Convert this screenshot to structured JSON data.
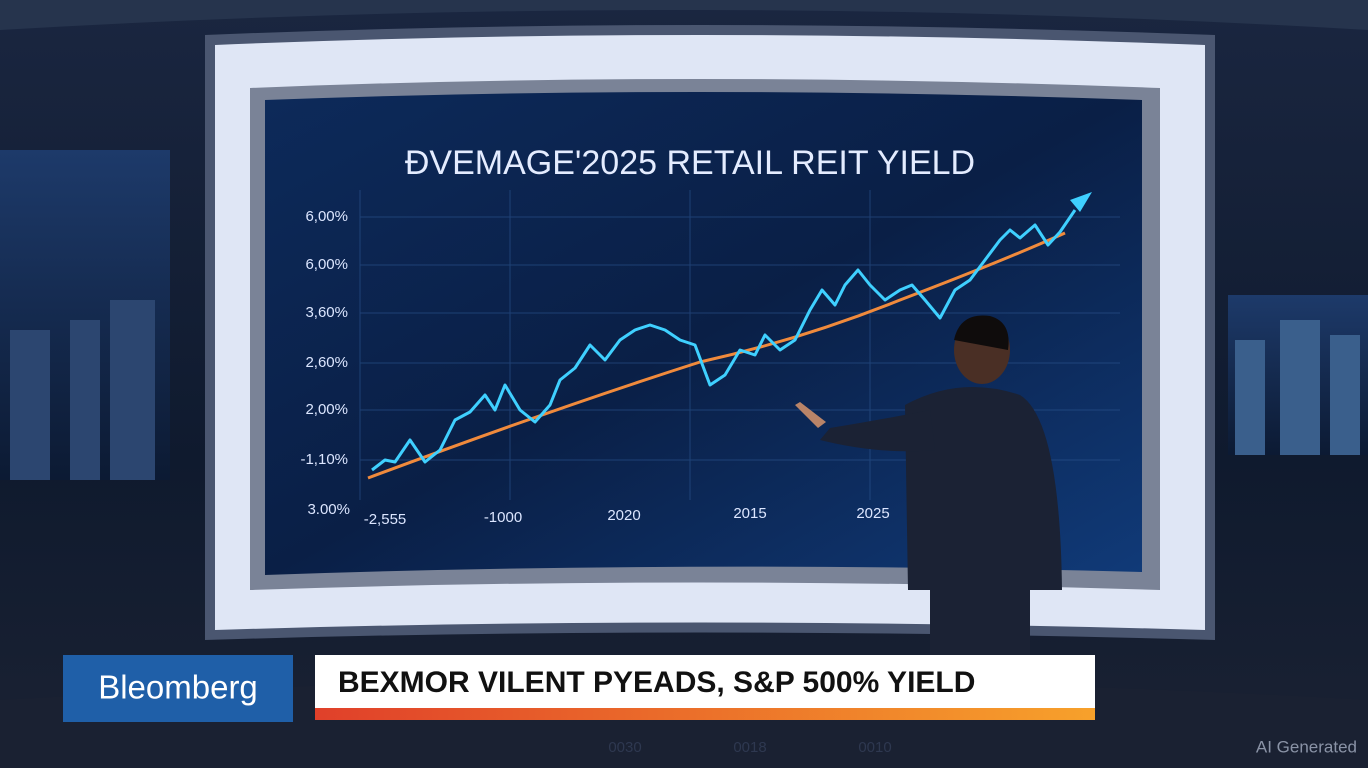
{
  "screen": {
    "title": "ÐVEMAGE'2025 RETAIL REIT YIELD",
    "y_labels": [
      "6,00%",
      "6,00%",
      "3,60%",
      "2,60%",
      "2,00%",
      "-1,10%",
      "3.00%"
    ],
    "x_labels": [
      "-2,555",
      "-1000",
      "2020",
      "2015",
      "2025"
    ]
  },
  "ticker": {
    "brand": "Bleomberg",
    "headline": "BEXMOR VILENT PYEADS, S&P 500% YIELD"
  },
  "floor_labels": [
    "0030",
    "0018",
    "0010"
  ],
  "watermark": "AI Generated"
}
